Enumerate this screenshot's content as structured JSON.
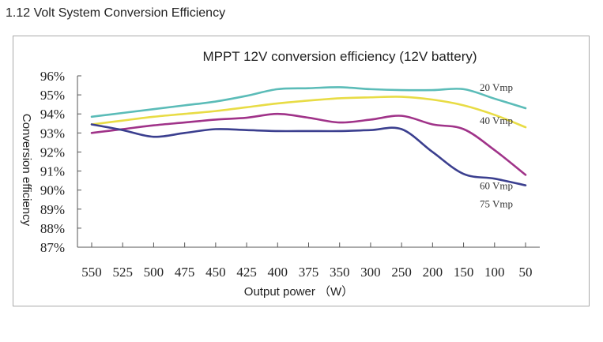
{
  "page": {
    "heading": "1.12 Volt System Conversion Efficiency"
  },
  "chart_data": {
    "type": "line",
    "title": "MPPT 12V conversion efficiency (12V battery)",
    "xlabel": "Output power （W）",
    "ylabel": "Conversion efficiency",
    "categories": [
      "550",
      "525",
      "500",
      "475",
      "450",
      "425",
      "400",
      "375",
      "350",
      "300",
      "250",
      "200",
      "150",
      "100",
      "50"
    ],
    "y_ticks": [
      "87%",
      "88%",
      "89%",
      "90%",
      "91%",
      "92%",
      "93%",
      "94%",
      "95%",
      "96%"
    ],
    "ylim": [
      87,
      96
    ],
    "grid": false,
    "legend": "inline labels at right end of series",
    "series": [
      {
        "name": "20 Vmp",
        "color": "#5bbcb8",
        "values": [
          93.85,
          94.05,
          94.25,
          94.45,
          94.65,
          94.95,
          95.3,
          95.35,
          95.4,
          95.3,
          95.25,
          95.25,
          95.3,
          94.8,
          94.3
        ]
      },
      {
        "name": "40 Vmp",
        "color": "#e8dc45",
        "values": [
          93.45,
          93.65,
          93.85,
          94.0,
          94.15,
          94.35,
          94.55,
          94.7,
          94.82,
          94.87,
          94.9,
          94.75,
          94.45,
          93.95,
          93.3
        ]
      },
      {
        "name": "60 Vmp",
        "color": "#a03389",
        "values": [
          93.0,
          93.2,
          93.4,
          93.55,
          93.7,
          93.8,
          94.0,
          93.8,
          93.55,
          93.7,
          93.9,
          93.45,
          93.2,
          92.1,
          90.8
        ]
      },
      {
        "name": "75 Vmp",
        "color": "#3b3f8f",
        "values": [
          93.45,
          93.15,
          92.8,
          93.0,
          93.2,
          93.15,
          93.1,
          93.1,
          93.1,
          93.15,
          93.2,
          92.0,
          90.85,
          90.6,
          90.25
        ]
      }
    ]
  }
}
